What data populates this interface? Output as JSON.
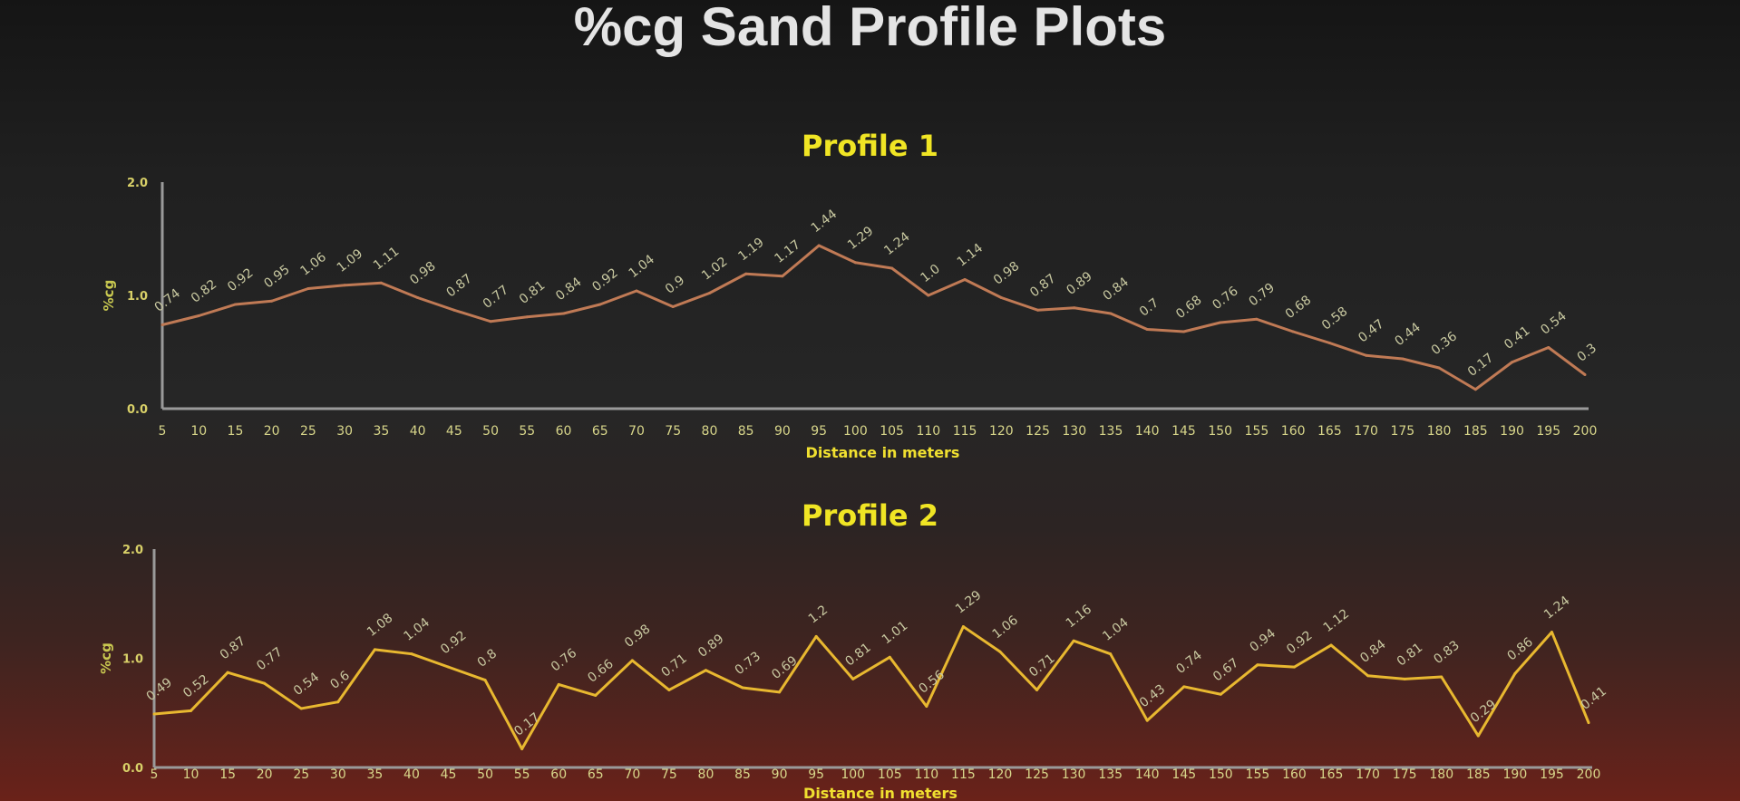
{
  "page": {
    "title": "%cg Sand Profile Plots"
  },
  "chart_data": [
    {
      "type": "line",
      "title": "Profile 1",
      "xlabel": "Distance in meters",
      "ylabel": "%cg",
      "ylim": [
        0,
        2.0
      ],
      "yticks": [
        "0.0",
        "1.0",
        "2.0"
      ],
      "grid": false,
      "color": "#c07a55",
      "x": [
        5,
        10,
        15,
        20,
        25,
        30,
        35,
        40,
        45,
        50,
        55,
        60,
        65,
        70,
        75,
        80,
        85,
        90,
        95,
        100,
        105,
        110,
        115,
        120,
        125,
        130,
        135,
        140,
        145,
        150,
        155,
        160,
        165,
        170,
        175,
        180,
        185,
        190,
        195,
        200
      ],
      "values": [
        0.74,
        0.82,
        0.92,
        0.95,
        1.06,
        1.09,
        1.11,
        0.98,
        0.87,
        0.77,
        0.81,
        0.84,
        0.92,
        1.04,
        0.9,
        1.02,
        1.19,
        1.17,
        1.44,
        1.29,
        1.24,
        1.0,
        1.14,
        0.98,
        0.87,
        0.89,
        0.84,
        0.7,
        0.68,
        0.76,
        0.79,
        0.68,
        0.58,
        0.47,
        0.44,
        0.36,
        0.17,
        0.41,
        0.54,
        0.3
      ],
      "data_labels": [
        "0.74",
        "0.82",
        "0.92",
        "0.95",
        "1.06",
        "1.09",
        "1.11",
        "0.98",
        "0.87",
        "0.77",
        "0.81",
        "0.84",
        "0.92",
        "1.04",
        "0.9",
        "1.02",
        "1.19",
        "1.17",
        "1.44",
        "1.29",
        "1.24",
        "1.0",
        "1.14",
        "0.98",
        "0.87",
        "0.89",
        "0.84",
        "0.7",
        "0.68",
        "0.76",
        "0.79",
        "0.68",
        "0.58",
        "0.47",
        "0.44",
        "0.36",
        "0.17",
        "0.41",
        "0.54",
        "0.3"
      ]
    },
    {
      "type": "line",
      "title": "Profile 2",
      "xlabel": "Distance in meters",
      "ylabel": "%cg",
      "ylim": [
        0,
        2.0
      ],
      "yticks": [
        "0.0",
        "1.0",
        "2.0"
      ],
      "grid": false,
      "color": "#e8b830",
      "x": [
        5,
        10,
        15,
        20,
        25,
        30,
        35,
        40,
        45,
        50,
        55,
        60,
        65,
        70,
        75,
        80,
        85,
        90,
        95,
        100,
        105,
        110,
        115,
        120,
        125,
        130,
        135,
        140,
        145,
        150,
        155,
        160,
        165,
        170,
        175,
        180,
        185,
        190,
        195,
        200
      ],
      "values": [
        0.49,
        0.52,
        0.87,
        0.77,
        0.54,
        0.6,
        1.08,
        1.04,
        0.92,
        0.8,
        0.17,
        0.76,
        0.66,
        0.98,
        0.71,
        0.89,
        0.73,
        0.69,
        1.2,
        0.81,
        1.01,
        0.56,
        1.29,
        1.06,
        0.71,
        1.16,
        1.04,
        0.43,
        0.74,
        0.67,
        0.94,
        0.92,
        1.12,
        0.84,
        0.81,
        0.83,
        0.29,
        0.86,
        1.24,
        0.41
      ],
      "data_labels": [
        "0.49",
        "0.52",
        "0.87",
        "0.77",
        "0.54",
        "0.6",
        "1.08",
        "1.04",
        "0.92",
        "0.8",
        "0.17",
        "0.76",
        "0.66",
        "0.98",
        "0.71",
        "0.89",
        "0.73",
        "0.69",
        "1.2",
        "0.81",
        "1.01",
        "0.56",
        "1.29",
        "1.06",
        "0.71",
        "1.16",
        "1.04",
        "0.43",
        "0.74",
        "0.67",
        "0.94",
        "0.92",
        "1.12",
        "0.84",
        "0.81",
        "0.83",
        "0.29",
        "0.86",
        "1.24",
        "0.41"
      ]
    }
  ]
}
